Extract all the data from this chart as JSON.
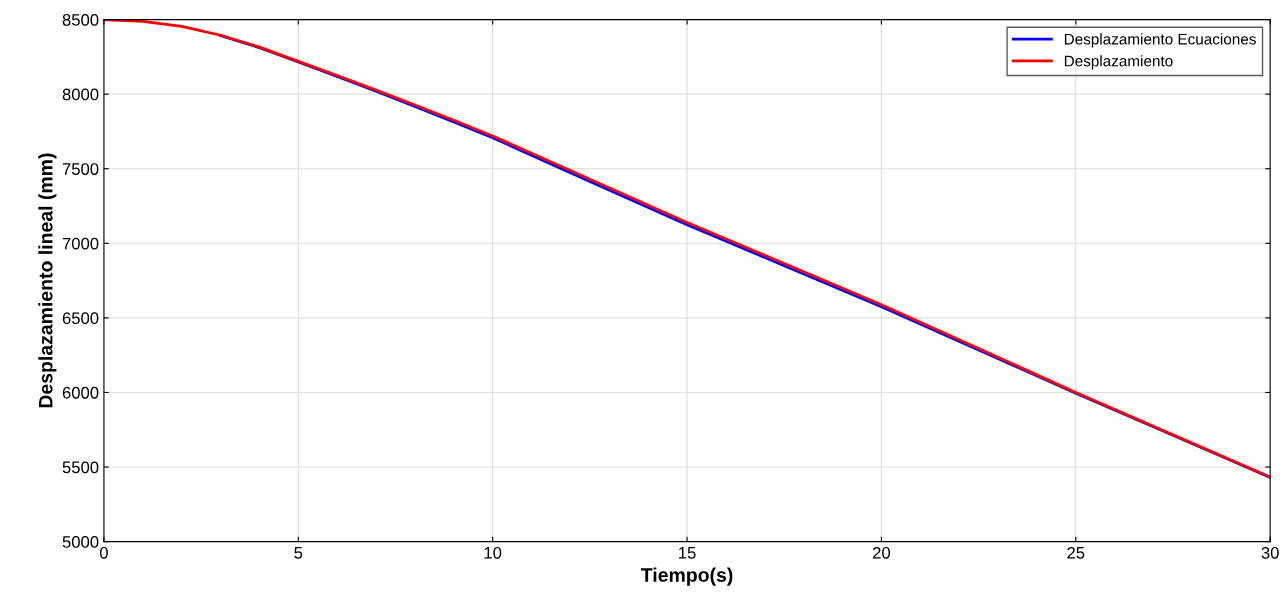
{
  "chart_data": {
    "type": "line",
    "xlabel": "Tiempo(s)",
    "ylabel": "Desplazamiento lineal (mm)",
    "x": [
      0,
      1,
      2,
      3,
      4,
      5,
      6,
      7,
      8,
      9,
      10,
      12.5,
      15,
      17.5,
      20,
      22.5,
      25,
      27.5,
      30
    ],
    "series": [
      {
        "name": "Desplazamiento Ecuaciones",
        "color": "#0000ff",
        "values": [
          null,
          null,
          null,
          8393,
          8312,
          8216,
          8119,
          8019,
          7917,
          7813,
          7708,
          7415,
          7125,
          6850,
          6575,
          6285,
          5995,
          5713,
          5430
        ]
      },
      {
        "name": "Desplazamiento",
        "color": "#ff0000",
        "values": [
          8500,
          8488,
          8455,
          8395,
          8315,
          8220,
          8125,
          8027,
          7927,
          7825,
          7720,
          7430,
          7140,
          6865,
          6588,
          6295,
          6000,
          5717,
          5433
        ]
      }
    ],
    "xlim": [
      0,
      30
    ],
    "xticks": [
      0,
      5,
      10,
      15,
      20,
      25,
      30
    ],
    "ylim": [
      5000,
      8500
    ],
    "yticks": [
      5000,
      5500,
      6000,
      6500,
      7000,
      7500,
      8000,
      8500
    ],
    "grid": true,
    "legend": "top right",
    "marker": "none",
    "line_style": "solid"
  }
}
